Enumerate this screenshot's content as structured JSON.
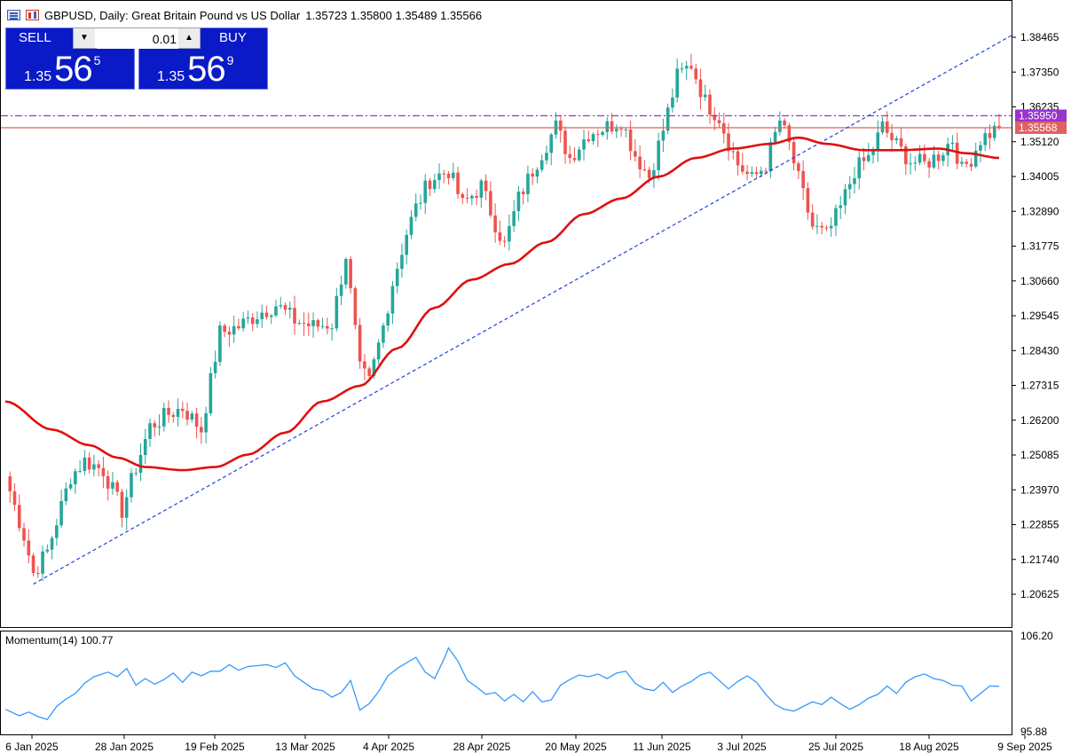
{
  "window": {
    "symbol": "GBPUSD",
    "timeframe": "Daily",
    "title": "GBPUSD, Daily:  Great Britain Pound vs US Dollar",
    "ohlc": "1.35723 1.35800 1.35489 1.35566"
  },
  "trade_panel": {
    "sell_label": "SELL",
    "buy_label": "BUY",
    "lot": "0.01",
    "sell_price": {
      "prefix": "1.35",
      "big": "56",
      "sup": "5"
    },
    "buy_price": {
      "prefix": "1.35",
      "big": "56",
      "sup": "9"
    }
  },
  "colors": {
    "bull": "#26a69a",
    "bear": "#ef5350",
    "ma": "#e01010",
    "trendline": "#1f3fe0",
    "purple_line": "#9933cc",
    "bid_line": "#e06060",
    "momentum": "#3399ff",
    "button_bg": "#0a1ac6"
  },
  "icons": [
    "chart-menu-icon",
    "chart-type-icon",
    "lot-decrease-icon",
    "lot-increase-icon"
  ],
  "chart_data": [
    {
      "type": "candlestick",
      "name": "GBPUSD Daily",
      "ylim": [
        1.2,
        1.389
      ],
      "y_ticks": [
        "1.38465",
        "1.37350",
        "1.36235",
        "1.35120",
        "1.34005",
        "1.32890",
        "1.31775",
        "1.30660",
        "1.29545",
        "1.28430",
        "1.27315",
        "1.26200",
        "1.25085",
        "1.23970",
        "1.22855",
        "1.21740",
        "1.20625"
      ],
      "x_ticks": [
        "6 Jan 2025",
        "28 Jan 2025",
        "19 Feb 2025",
        "13 Mar 2025",
        "4 Apr 2025",
        "28 Apr 2025",
        "20 May 2025",
        "11 Jun 2025",
        "3 Jul 2025",
        "25 Jul 2025",
        "18 Aug 2025",
        "9 Sep 2025"
      ],
      "price_labels": {
        "purple": "1.35950",
        "bid": "1.35568"
      },
      "anchors": [
        {
          "i": 0,
          "c": 1.244
        },
        {
          "i": 4,
          "c": 1.225
        },
        {
          "i": 6,
          "c": 1.213
        },
        {
          "i": 9,
          "c": 1.22
        },
        {
          "i": 14,
          "c": 1.244
        },
        {
          "i": 17,
          "c": 1.249
        },
        {
          "i": 21,
          "c": 1.246
        },
        {
          "i": 25,
          "c": 1.233
        },
        {
          "i": 28,
          "c": 1.247
        },
        {
          "i": 31,
          "c": 1.26
        },
        {
          "i": 35,
          "c": 1.264
        },
        {
          "i": 38,
          "c": 1.266
        },
        {
          "i": 42,
          "c": 1.259
        },
        {
          "i": 46,
          "c": 1.29
        },
        {
          "i": 50,
          "c": 1.292
        },
        {
          "i": 54,
          "c": 1.296
        },
        {
          "i": 58,
          "c": 1.299
        },
        {
          "i": 62,
          "c": 1.294
        },
        {
          "i": 66,
          "c": 1.292
        },
        {
          "i": 70,
          "c": 1.293
        },
        {
          "i": 73,
          "c": 1.315
        },
        {
          "i": 76,
          "c": 1.278
        },
        {
          "i": 78,
          "c": 1.274
        },
        {
          "i": 81,
          "c": 1.292
        },
        {
          "i": 83,
          "c": 1.306
        },
        {
          "i": 86,
          "c": 1.322
        },
        {
          "i": 88,
          "c": 1.33
        },
        {
          "i": 91,
          "c": 1.339
        },
        {
          "i": 95,
          "c": 1.342
        },
        {
          "i": 98,
          "c": 1.331
        },
        {
          "i": 102,
          "c": 1.337
        },
        {
          "i": 105,
          "c": 1.325
        },
        {
          "i": 107,
          "c": 1.318
        },
        {
          "i": 110,
          "c": 1.333
        },
        {
          "i": 114,
          "c": 1.345
        },
        {
          "i": 118,
          "c": 1.356
        },
        {
          "i": 121,
          "c": 1.346
        },
        {
          "i": 125,
          "c": 1.354
        },
        {
          "i": 129,
          "c": 1.356
        },
        {
          "i": 132,
          "c": 1.358
        },
        {
          "i": 135,
          "c": 1.347
        },
        {
          "i": 138,
          "c": 1.34
        },
        {
          "i": 141,
          "c": 1.355
        },
        {
          "i": 144,
          "c": 1.372
        },
        {
          "i": 147,
          "c": 1.376
        },
        {
          "i": 150,
          "c": 1.364
        },
        {
          "i": 153,
          "c": 1.359
        },
        {
          "i": 155,
          "c": 1.351
        },
        {
          "i": 157,
          "c": 1.344
        },
        {
          "i": 160,
          "c": 1.339
        },
        {
          "i": 163,
          "c": 1.344
        },
        {
          "i": 166,
          "c": 1.358
        },
        {
          "i": 168,
          "c": 1.35
        },
        {
          "i": 170,
          "c": 1.339
        },
        {
          "i": 173,
          "c": 1.324
        },
        {
          "i": 176,
          "c": 1.321
        },
        {
          "i": 179,
          "c": 1.33
        },
        {
          "i": 182,
          "c": 1.342
        },
        {
          "i": 185,
          "c": 1.346
        },
        {
          "i": 188,
          "c": 1.356
        },
        {
          "i": 191,
          "c": 1.35
        },
        {
          "i": 194,
          "c": 1.345
        },
        {
          "i": 197,
          "c": 1.344
        },
        {
          "i": 200,
          "c": 1.347
        },
        {
          "i": 203,
          "c": 1.352
        },
        {
          "i": 205,
          "c": 1.342
        },
        {
          "i": 207,
          "c": 1.346
        },
        {
          "i": 209,
          "c": 1.352
        },
        {
          "i": 211,
          "c": 1.354
        },
        {
          "i": 213,
          "c": 1.3557
        }
      ],
      "moving_average": [
        {
          "i": 0,
          "v": 1.268
        },
        {
          "i": 10,
          "v": 1.259
        },
        {
          "i": 18,
          "v": 1.254
        },
        {
          "i": 24,
          "v": 1.25
        },
        {
          "i": 30,
          "v": 1.247
        },
        {
          "i": 38,
          "v": 1.246
        },
        {
          "i": 45,
          "v": 1.247
        },
        {
          "i": 52,
          "v": 1.251
        },
        {
          "i": 60,
          "v": 1.258
        },
        {
          "i": 68,
          "v": 1.268
        },
        {
          "i": 76,
          "v": 1.273
        },
        {
          "i": 84,
          "v": 1.285
        },
        {
          "i": 92,
          "v": 1.298
        },
        {
          "i": 100,
          "v": 1.307
        },
        {
          "i": 108,
          "v": 1.312
        },
        {
          "i": 116,
          "v": 1.319
        },
        {
          "i": 124,
          "v": 1.328
        },
        {
          "i": 132,
          "v": 1.333
        },
        {
          "i": 140,
          "v": 1.34
        },
        {
          "i": 148,
          "v": 1.346
        },
        {
          "i": 156,
          "v": 1.349
        },
        {
          "i": 164,
          "v": 1.3505
        },
        {
          "i": 170,
          "v": 1.3525
        },
        {
          "i": 176,
          "v": 1.3505
        },
        {
          "i": 184,
          "v": 1.3485
        },
        {
          "i": 192,
          "v": 1.3485
        },
        {
          "i": 200,
          "v": 1.349
        },
        {
          "i": 206,
          "v": 1.3475
        },
        {
          "i": 213,
          "v": 1.346
        }
      ],
      "trendline": [
        {
          "i": 6,
          "v": 1.2095
        },
        {
          "i": 213,
          "v": 1.383
        }
      ],
      "purple_line": 1.3595,
      "bid_line": 1.35568
    },
    {
      "type": "line",
      "name": "Momentum(14)",
      "label": "Momentum(14) 100.77",
      "series_name": "Momentum(14)",
      "current": "100.77",
      "ylim": [
        95.88,
        106.2
      ],
      "y_ticks": [
        "106.20",
        "95.88"
      ],
      "points": [
        {
          "i": 0,
          "v": 98.3
        },
        {
          "i": 3,
          "v": 97.6
        },
        {
          "i": 5,
          "v": 98.0
        },
        {
          "i": 7,
          "v": 97.5
        },
        {
          "i": 9,
          "v": 97.2
        },
        {
          "i": 11,
          "v": 98.6
        },
        {
          "i": 13,
          "v": 99.4
        },
        {
          "i": 15,
          "v": 100.0
        },
        {
          "i": 17,
          "v": 101.1
        },
        {
          "i": 19,
          "v": 101.8
        },
        {
          "i": 22,
          "v": 102.3
        },
        {
          "i": 24,
          "v": 101.8
        },
        {
          "i": 26,
          "v": 102.7
        },
        {
          "i": 28,
          "v": 100.9
        },
        {
          "i": 30,
          "v": 101.6
        },
        {
          "i": 32,
          "v": 101.0
        },
        {
          "i": 34,
          "v": 101.5
        },
        {
          "i": 36,
          "v": 102.2
        },
        {
          "i": 38,
          "v": 101.2
        },
        {
          "i": 40,
          "v": 102.3
        },
        {
          "i": 42,
          "v": 101.9
        },
        {
          "i": 44,
          "v": 102.4
        },
        {
          "i": 46,
          "v": 102.4
        },
        {
          "i": 48,
          "v": 103.1
        },
        {
          "i": 50,
          "v": 102.5
        },
        {
          "i": 52,
          "v": 102.9
        },
        {
          "i": 54,
          "v": 103.0
        },
        {
          "i": 56,
          "v": 103.1
        },
        {
          "i": 58,
          "v": 102.8
        },
        {
          "i": 60,
          "v": 103.3
        },
        {
          "i": 62,
          "v": 101.9
        },
        {
          "i": 64,
          "v": 101.2
        },
        {
          "i": 66,
          "v": 100.5
        },
        {
          "i": 68,
          "v": 100.3
        },
        {
          "i": 70,
          "v": 99.6
        },
        {
          "i": 72,
          "v": 100.1
        },
        {
          "i": 74,
          "v": 101.4
        },
        {
          "i": 76,
          "v": 98.2
        },
        {
          "i": 78,
          "v": 98.9
        },
        {
          "i": 80,
          "v": 100.2
        },
        {
          "i": 82,
          "v": 101.9
        },
        {
          "i": 84,
          "v": 102.7
        },
        {
          "i": 86,
          "v": 103.3
        },
        {
          "i": 88,
          "v": 103.9
        },
        {
          "i": 90,
          "v": 102.3
        },
        {
          "i": 92,
          "v": 101.6
        },
        {
          "i": 94,
          "v": 103.7
        },
        {
          "i": 95,
          "v": 104.9
        },
        {
          "i": 97,
          "v": 103.5
        },
        {
          "i": 99,
          "v": 101.4
        },
        {
          "i": 101,
          "v": 100.7
        },
        {
          "i": 103,
          "v": 99.9
        },
        {
          "i": 105,
          "v": 100.1
        },
        {
          "i": 107,
          "v": 99.2
        },
        {
          "i": 109,
          "v": 99.9
        },
        {
          "i": 111,
          "v": 99.1
        },
        {
          "i": 113,
          "v": 100.2
        },
        {
          "i": 115,
          "v": 99.1
        },
        {
          "i": 117,
          "v": 99.3
        },
        {
          "i": 119,
          "v": 100.9
        },
        {
          "i": 121,
          "v": 101.5
        },
        {
          "i": 123,
          "v": 102.0
        },
        {
          "i": 125,
          "v": 101.8
        },
        {
          "i": 127,
          "v": 102.1
        },
        {
          "i": 129,
          "v": 101.6
        },
        {
          "i": 131,
          "v": 102.2
        },
        {
          "i": 133,
          "v": 102.4
        },
        {
          "i": 135,
          "v": 101.1
        },
        {
          "i": 137,
          "v": 100.5
        },
        {
          "i": 139,
          "v": 100.3
        },
        {
          "i": 141,
          "v": 101.2
        },
        {
          "i": 143,
          "v": 100.1
        },
        {
          "i": 145,
          "v": 100.8
        },
        {
          "i": 147,
          "v": 101.3
        },
        {
          "i": 149,
          "v": 102.0
        },
        {
          "i": 151,
          "v": 102.3
        },
        {
          "i": 153,
          "v": 101.4
        },
        {
          "i": 155,
          "v": 100.5
        },
        {
          "i": 157,
          "v": 101.3
        },
        {
          "i": 159,
          "v": 101.9
        },
        {
          "i": 161,
          "v": 101.2
        },
        {
          "i": 163,
          "v": 99.9
        },
        {
          "i": 165,
          "v": 98.8
        },
        {
          "i": 167,
          "v": 98.3
        },
        {
          "i": 169,
          "v": 98.1
        },
        {
          "i": 171,
          "v": 98.6
        },
        {
          "i": 173,
          "v": 99.1
        },
        {
          "i": 175,
          "v": 98.8
        },
        {
          "i": 177,
          "v": 99.6
        },
        {
          "i": 179,
          "v": 98.9
        },
        {
          "i": 181,
          "v": 98.3
        },
        {
          "i": 183,
          "v": 98.8
        },
        {
          "i": 185,
          "v": 99.5
        },
        {
          "i": 187,
          "v": 99.9
        },
        {
          "i": 189,
          "v": 100.8
        },
        {
          "i": 191,
          "v": 100.0
        },
        {
          "i": 193,
          "v": 101.2
        },
        {
          "i": 195,
          "v": 101.8
        },
        {
          "i": 197,
          "v": 102.1
        },
        {
          "i": 199,
          "v": 101.6
        },
        {
          "i": 201,
          "v": 101.4
        },
        {
          "i": 203,
          "v": 100.9
        },
        {
          "i": 205,
          "v": 100.8
        },
        {
          "i": 207,
          "v": 99.2
        },
        {
          "i": 209,
          "v": 100.0
        },
        {
          "i": 211,
          "v": 100.8
        },
        {
          "i": 213,
          "v": 100.77
        }
      ]
    }
  ]
}
